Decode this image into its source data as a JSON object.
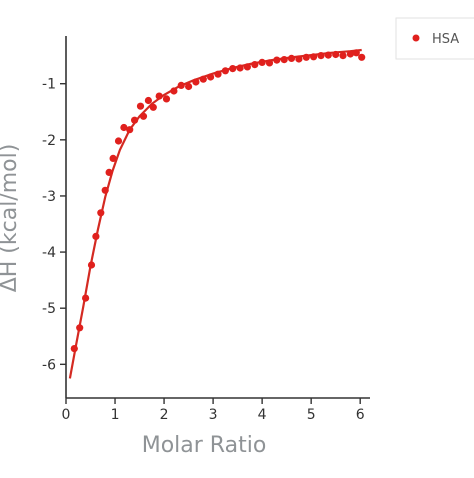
{
  "chart_data": {
    "type": "scatter",
    "title": "",
    "xlabel": "Molar Ratio",
    "ylabel": "ΔH (kcal/mol)",
    "xlim": [
      0,
      6.2
    ],
    "ylim": [
      -6.6,
      -0.15
    ],
    "xticks": [
      0,
      1,
      2,
      3,
      4,
      5,
      6
    ],
    "yticks": [
      -1,
      -2,
      -3,
      -4,
      -5,
      -6
    ],
    "grid": false,
    "legend_position": "top-right",
    "series": [
      {
        "name": "HSA",
        "color": "#e0201d",
        "marker": "circle",
        "x": [
          0.17,
          0.28,
          0.4,
          0.52,
          0.61,
          0.71,
          0.8,
          0.88,
          0.96,
          1.07,
          1.18,
          1.3,
          1.4,
          1.52,
          1.58,
          1.68,
          1.78,
          1.9,
          2.05,
          2.2,
          2.35,
          2.5,
          2.65,
          2.8,
          2.95,
          3.1,
          3.25,
          3.4,
          3.55,
          3.7,
          3.85,
          4.0,
          4.15,
          4.3,
          4.45,
          4.6,
          4.75,
          4.9,
          5.05,
          5.2,
          5.35,
          5.5,
          5.65,
          5.8,
          5.92,
          6.03
        ],
        "y": [
          -5.72,
          -5.35,
          -4.82,
          -4.23,
          -3.72,
          -3.3,
          -2.9,
          -2.58,
          -2.33,
          -2.02,
          -1.78,
          -1.82,
          -1.65,
          -1.4,
          -1.58,
          -1.3,
          -1.42,
          -1.22,
          -1.27,
          -1.13,
          -1.03,
          -1.05,
          -0.97,
          -0.92,
          -0.88,
          -0.83,
          -0.77,
          -0.73,
          -0.72,
          -0.7,
          -0.66,
          -0.62,
          -0.63,
          -0.58,
          -0.57,
          -0.55,
          -0.56,
          -0.53,
          -0.52,
          -0.5,
          -0.49,
          -0.48,
          -0.5,
          -0.47,
          -0.45,
          -0.53
        ]
      }
    ],
    "fit_line": {
      "color": "#d42a22",
      "x": [
        0.08,
        0.2,
        0.35,
        0.5,
        0.65,
        0.8,
        0.95,
        1.1,
        1.3,
        1.5,
        1.75,
        2.0,
        2.3,
        2.6,
        3.0,
        3.4,
        3.8,
        4.2,
        4.6,
        5.0,
        5.4,
        5.8,
        6.03
      ],
      "y": [
        -6.25,
        -5.68,
        -4.98,
        -4.25,
        -3.6,
        -3.02,
        -2.55,
        -2.18,
        -1.82,
        -1.58,
        -1.36,
        -1.2,
        -1.05,
        -0.94,
        -0.82,
        -0.72,
        -0.64,
        -0.58,
        -0.53,
        -0.49,
        -0.45,
        -0.42,
        -0.4
      ]
    }
  }
}
